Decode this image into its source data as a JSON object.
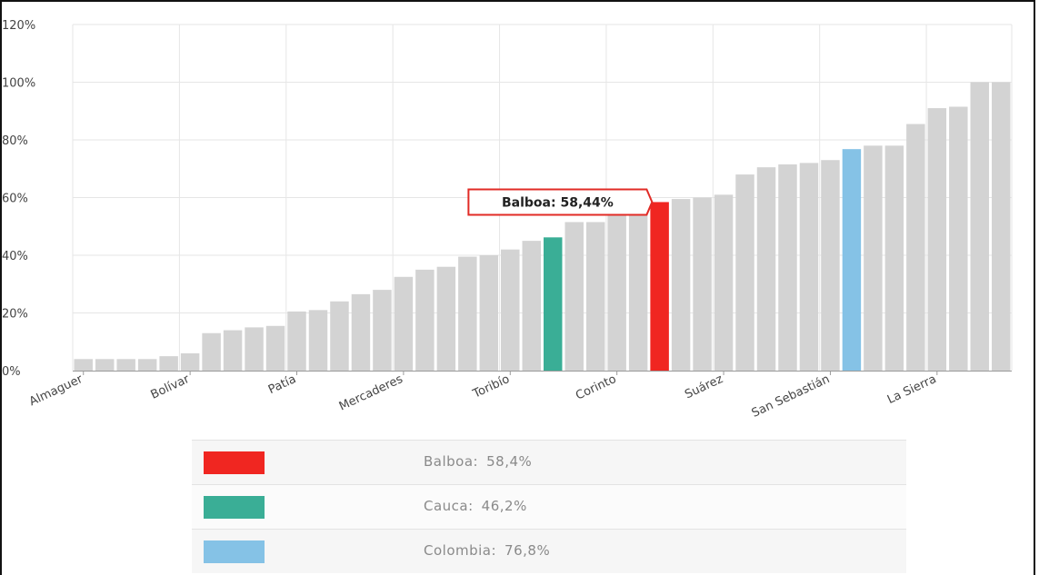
{
  "chart_data": {
    "type": "bar",
    "ylim": [
      0,
      120
    ],
    "y_ticks": [
      "0%",
      "20%",
      "40%",
      "60%",
      "80%",
      "100%",
      "120%"
    ],
    "y_tick_values": [
      0,
      20,
      40,
      60,
      80,
      100,
      120
    ],
    "grid": true,
    "values": [
      4,
      4,
      4,
      4,
      5,
      6,
      13,
      14,
      15,
      15.5,
      20.5,
      21,
      24,
      26.5,
      28,
      32.5,
      35,
      36,
      39.5,
      40,
      42,
      45,
      46.2,
      51.5,
      51.5,
      54,
      55,
      58.44,
      59.5,
      60,
      61,
      68,
      70.5,
      71.5,
      72,
      73,
      76.8,
      78,
      78,
      85.5,
      91,
      91.5,
      100,
      100
    ],
    "colors": [
      "#d3d3d3",
      "#d3d3d3",
      "#d3d3d3",
      "#d3d3d3",
      "#d3d3d3",
      "#d3d3d3",
      "#d3d3d3",
      "#d3d3d3",
      "#d3d3d3",
      "#d3d3d3",
      "#d3d3d3",
      "#d3d3d3",
      "#d3d3d3",
      "#d3d3d3",
      "#d3d3d3",
      "#d3d3d3",
      "#d3d3d3",
      "#d3d3d3",
      "#d3d3d3",
      "#d3d3d3",
      "#d3d3d3",
      "#d3d3d3",
      "#3aae96",
      "#d3d3d3",
      "#d3d3d3",
      "#d3d3d3",
      "#d3d3d3",
      "#f02621",
      "#d3d3d3",
      "#d3d3d3",
      "#d3d3d3",
      "#d3d3d3",
      "#d3d3d3",
      "#d3d3d3",
      "#d3d3d3",
      "#d3d3d3",
      "#85c2e6",
      "#d3d3d3",
      "#d3d3d3",
      "#d3d3d3",
      "#d3d3d3",
      "#d3d3d3",
      "#d3d3d3",
      "#d3d3d3"
    ],
    "x_tick_labels": [
      {
        "index": 0,
        "label": "Almaguer"
      },
      {
        "index": 5,
        "label": "Bolívar"
      },
      {
        "index": 10,
        "label": "Patía"
      },
      {
        "index": 15,
        "label": "Mercaderes"
      },
      {
        "index": 20,
        "label": "Toribío"
      },
      {
        "index": 25,
        "label": "Corinto"
      },
      {
        "index": 30,
        "label": "Suárez"
      },
      {
        "index": 35,
        "label": "San Sebastián"
      },
      {
        "index": 40,
        "label": "La Sierra"
      }
    ],
    "tooltip": {
      "index": 27,
      "text": "Balboa: 58,44%"
    },
    "legend": [
      {
        "label": "Balboa:",
        "value": "58,4%",
        "color": "#f02621"
      },
      {
        "label": "Cauca:",
        "value": "46,2%",
        "color": "#3aae96"
      },
      {
        "label": "Colombia:",
        "value": "76,8%",
        "color": "#85c2e6"
      }
    ],
    "colors_theme": {
      "bar_default": "#d3d3d3",
      "highlight": "#f02621",
      "grid": "#e6e6e6",
      "axis": "#9a9a9a"
    }
  }
}
